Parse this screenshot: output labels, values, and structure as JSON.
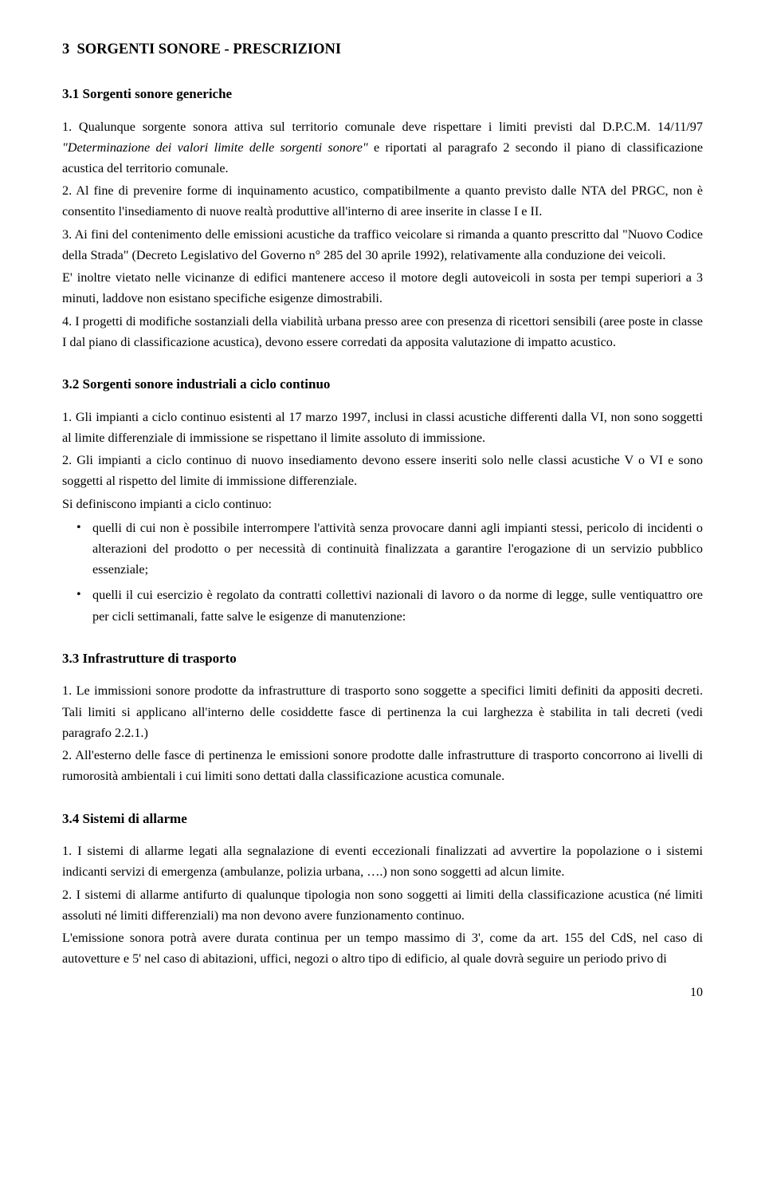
{
  "section": {
    "number": "3",
    "title": "SORGENTI SONORE - PRESCRIZIONI"
  },
  "sub1": {
    "title": "3.1 Sorgenti sonore generiche",
    "p1_a": "1. Qualunque sorgente sonora attiva sul territorio comunale deve rispettare i limiti previsti dal D.P.C.M. 14/11/97 ",
    "p1_italic": "\"Determinazione dei valori limite delle sorgenti sonore\"",
    "p1_b": " e riportati al paragrafo  2 secondo il piano di classificazione acustica del territorio comunale.",
    "p2": "2. Al fine di prevenire forme di inquinamento acustico, compatibilmente a quanto previsto dalle NTA del PRGC, non è consentito l'insediamento di nuove realtà produttive all'interno di aree inserite in classe I e II.",
    "p3": "3. Ai fini del contenimento delle emissioni acustiche da traffico veicolare si rimanda a quanto prescritto dal \"Nuovo Codice della Strada\" (Decreto Legislativo del Governo n° 285 del 30 aprile 1992), relativamente alla conduzione dei veicoli.",
    "p3b": "E' inoltre vietato nelle vicinanze di edifici mantenere acceso il motore degli autoveicoli in sosta per tempi superiori a 3 minuti, laddove non esistano specifiche esigenze dimostrabili.",
    "p4": "4. I progetti di modifiche sostanziali della viabilità urbana presso aree con presenza di ricettori sensibili (aree poste in classe I dal piano di classificazione acustica), devono essere corredati da apposita valutazione di impatto acustico."
  },
  "sub2": {
    "title": "3.2 Sorgenti sonore industriali a ciclo continuo",
    "p1": "1. Gli impianti a ciclo continuo esistenti al 17 marzo 1997, inclusi in classi acustiche differenti dalla VI, non sono soggetti al limite differenziale di immissione se rispettano il limite assoluto di immissione.",
    "p2": "2. Gli impianti a ciclo continuo di nuovo insediamento devono essere inseriti solo nelle classi acustiche V o VI e sono soggetti al rispetto del limite di immissione differenziale.",
    "p2b": "Si definiscono impianti a ciclo continuo:",
    "bullets": [
      "quelli di cui non è possibile interrompere l'attività senza provocare danni agli impianti stessi, pericolo di incidenti o alterazioni del prodotto o per necessità di continuità finalizzata a garantire l'erogazione di un servizio pubblico essenziale;",
      "quelli il cui esercizio è regolato da contratti collettivi nazionali di lavoro o da norme di legge, sulle ventiquattro ore per cicli settimanali, fatte salve le esigenze di manutenzione:"
    ]
  },
  "sub3": {
    "title": "3.3 Infrastrutture di trasporto",
    "p1": "1. Le immissioni sonore prodotte da infrastrutture di trasporto sono soggette a specifici limiti definiti da appositi decreti. Tali limiti si applicano all'interno delle cosiddette fasce di pertinenza la cui larghezza è stabilita in tali decreti (vedi paragrafo 2.2.1.)",
    "p2": "2. All'esterno delle fasce di pertinenza le emissioni sonore prodotte dalle infrastrutture di trasporto concorrono ai livelli di rumorosità ambientali i cui limiti sono dettati dalla classificazione acustica comunale."
  },
  "sub4": {
    "title": "3.4 Sistemi di allarme",
    "p1": "1. I sistemi di allarme legati alla segnalazione di eventi eccezionali finalizzati ad avvertire la popolazione o i sistemi indicanti servizi di emergenza (ambulanze, polizia urbana, ….) non sono soggetti ad alcun limite.",
    "p2": "2. I sistemi di allarme antifurto di qualunque tipologia non sono soggetti ai limiti della classificazione acustica (né limiti assoluti né limiti differenziali) ma non devono avere funzionamento continuo.",
    "p3": "L'emissione sonora potrà avere durata continua per un tempo massimo di 3', come da art. 155 del CdS, nel caso di autovetture e 5' nel caso di abitazioni, uffici, negozi o altro tipo di edificio, al quale dovrà seguire un periodo privo di"
  },
  "page": "10"
}
